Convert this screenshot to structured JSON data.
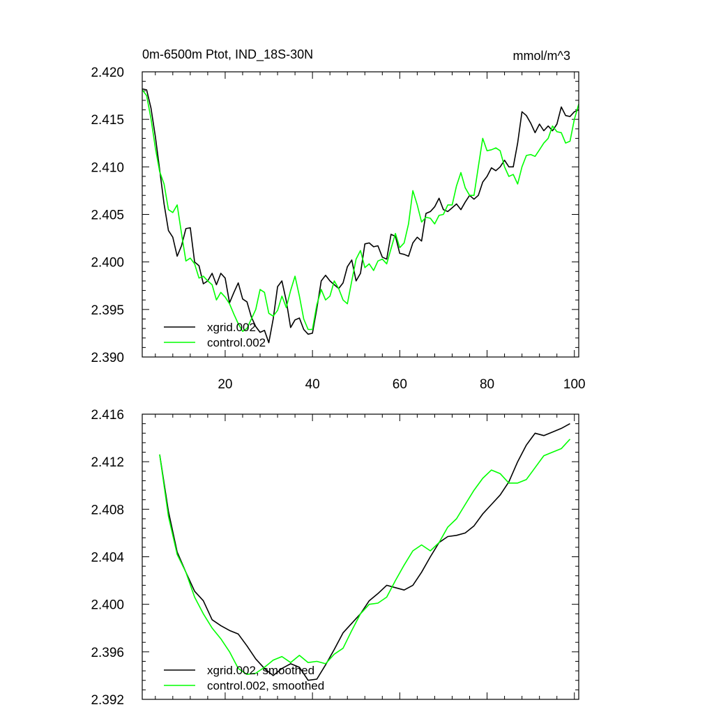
{
  "chart_data": [
    {
      "type": "line",
      "title": "0m-6500m Ptot, IND_18S-30N",
      "units": "mmol/m^3",
      "xlim": [
        1,
        101
      ],
      "ylim": [
        2.39,
        2.42
      ],
      "xticks": [
        20,
        40,
        60,
        80,
        100
      ],
      "yticks": [
        2.39,
        2.395,
        2.4,
        2.405,
        2.41,
        2.415,
        2.42
      ],
      "ytick_labels": [
        "2.390",
        "2.395",
        "2.400",
        "2.405",
        "2.410",
        "2.415",
        "2.420"
      ],
      "legend_position": "bottom-left",
      "x": [
        1,
        2,
        3,
        4,
        5,
        6,
        7,
        8,
        9,
        10,
        11,
        12,
        13,
        14,
        15,
        16,
        17,
        18,
        19,
        20,
        21,
        22,
        23,
        24,
        25,
        26,
        27,
        28,
        29,
        30,
        31,
        32,
        33,
        34,
        35,
        36,
        37,
        38,
        39,
        40,
        41,
        42,
        43,
        44,
        45,
        46,
        47,
        48,
        49,
        50,
        51,
        52,
        53,
        54,
        55,
        56,
        57,
        58,
        59,
        60,
        61,
        62,
        63,
        64,
        65,
        66,
        67,
        68,
        69,
        70,
        71,
        72,
        73,
        74,
        75,
        76,
        77,
        78,
        79,
        80,
        81,
        82,
        83,
        84,
        85,
        86,
        87,
        88,
        89,
        90,
        91,
        92,
        93,
        94,
        95,
        96,
        97,
        98,
        99,
        100,
        101
      ],
      "series": [
        {
          "name": "xgrid.002",
          "color": "#000000",
          "values": [
            2.4182,
            2.4181,
            2.4162,
            2.4132,
            2.4097,
            2.4061,
            2.4033,
            2.4026,
            2.4006,
            2.4017,
            2.4035,
            2.4036,
            2.4,
            2.3996,
            2.3977,
            2.398,
            2.3988,
            2.3976,
            2.3988,
            2.3983,
            2.3957,
            2.3968,
            2.3978,
            2.3961,
            2.3958,
            2.3942,
            2.3932,
            2.3926,
            2.3928,
            2.3915,
            2.394,
            2.3974,
            2.398,
            2.3959,
            2.3931,
            2.3939,
            2.3941,
            2.3929,
            2.3924,
            2.3925,
            2.3951,
            2.398,
            2.3986,
            2.398,
            2.3976,
            2.3972,
            2.3978,
            2.3995,
            2.4002,
            2.398,
            2.3988,
            2.4019,
            2.402,
            2.4016,
            2.4017,
            2.4005,
            2.4003,
            2.4029,
            2.4027,
            2.4009,
            2.4008,
            2.4006,
            2.402,
            2.4026,
            2.4022,
            2.4051,
            2.4053,
            2.4058,
            2.4067,
            2.4055,
            2.4053,
            2.4057,
            2.4061,
            2.4055,
            2.4063,
            2.407,
            2.4066,
            2.407,
            2.4084,
            2.409,
            2.4099,
            2.4096,
            2.41,
            2.4107,
            2.41,
            2.41,
            2.4125,
            2.4158,
            2.4154,
            2.4146,
            2.4136,
            2.4145,
            2.4138,
            2.4143,
            2.4138,
            2.4145,
            2.4163,
            2.4154,
            2.4153,
            2.4158,
            2.416
          ]
        },
        {
          "name": "control.002",
          "color": "#00ff00",
          "values": [
            2.4181,
            2.4175,
            2.4151,
            2.412,
            2.4095,
            2.4082,
            2.4055,
            2.4052,
            2.406,
            2.403,
            2.4001,
            2.4004,
            2.3998,
            2.3983,
            2.3985,
            2.398,
            2.3976,
            2.396,
            2.3968,
            2.3963,
            2.3956,
            2.3945,
            2.3935,
            2.3927,
            2.393,
            2.394,
            2.395,
            2.3971,
            2.3968,
            2.3946,
            2.3943,
            2.3949,
            2.3964,
            2.3952,
            2.397,
            2.3985,
            2.3964,
            2.394,
            2.3929,
            2.3929,
            2.3955,
            2.3971,
            2.396,
            2.3964,
            2.398,
            2.3972,
            2.396,
            2.3956,
            2.398,
            2.4003,
            2.4012,
            2.3994,
            2.3998,
            2.3991,
            2.4001,
            2.4003,
            2.3998,
            2.4014,
            2.403,
            2.4015,
            2.402,
            2.404,
            2.4075,
            2.406,
            2.4042,
            2.4047,
            2.4046,
            2.404,
            2.4049,
            2.405,
            2.406,
            2.406,
            2.408,
            2.4094,
            2.4078,
            2.407,
            2.407,
            2.41,
            2.413,
            2.4117,
            2.4118,
            2.412,
            2.4117,
            2.41,
            2.409,
            2.4092,
            2.4082,
            2.41,
            2.4112,
            2.4113,
            2.4111,
            2.4118,
            2.4125,
            2.413,
            2.4143,
            2.4137,
            2.4136,
            2.4125,
            2.4127,
            2.415,
            2.4166
          ]
        }
      ]
    },
    {
      "type": "line",
      "xlim": [
        1,
        101
      ],
      "ylim": [
        2.392,
        2.416
      ],
      "xticks": [
        20,
        40,
        60,
        80,
        100
      ],
      "yticks": [
        2.392,
        2.396,
        2.4,
        2.404,
        2.408,
        2.412,
        2.416
      ],
      "ytick_labels": [
        "2.392",
        "2.396",
        "2.400",
        "2.404",
        "2.408",
        "2.412",
        "2.416"
      ],
      "legend_position": "bottom-left",
      "x": [
        5,
        7,
        9,
        11,
        13,
        15,
        17,
        19,
        21,
        23,
        25,
        27,
        29,
        31,
        33,
        35,
        37,
        39,
        41,
        43,
        45,
        47,
        49,
        51,
        53,
        55,
        57,
        59,
        61,
        63,
        65,
        67,
        69,
        71,
        73,
        75,
        77,
        79,
        81,
        83,
        85,
        87,
        89,
        91,
        93,
        95,
        97,
        99
      ],
      "series": [
        {
          "name": "xgrid.002, smoothed",
          "color": "#000000",
          "values": [
            2.4126,
            2.4078,
            2.4044,
            2.4027,
            2.4011,
            2.4003,
            2.3987,
            2.3982,
            2.3978,
            2.3975,
            2.3965,
            2.3954,
            2.3946,
            2.394,
            2.3946,
            2.395,
            2.3947,
            2.3936,
            2.3937,
            2.3949,
            2.3962,
            2.3976,
            2.3984,
            2.3992,
            2.4003,
            2.4009,
            2.4016,
            2.4014,
            2.4012,
            2.4016,
            2.4027,
            2.404,
            2.4052,
            2.4057,
            2.4058,
            2.406,
            2.4066,
            2.4076,
            2.4084,
            2.4092,
            2.4103,
            2.412,
            2.4134,
            2.4144,
            2.4142,
            2.4145,
            2.4148,
            2.4152
          ]
        },
        {
          "name": "control.002, smoothed",
          "color": "#00ff00",
          "values": [
            2.4126,
            2.4074,
            2.4042,
            2.4027,
            2.4006,
            2.3992,
            2.398,
            2.3971,
            2.396,
            2.3946,
            2.3941,
            2.3942,
            2.3947,
            2.3953,
            2.3956,
            2.3951,
            2.3957,
            2.3951,
            2.3952,
            2.395,
            2.3958,
            2.3963,
            2.3978,
            2.3992,
            2.4,
            2.4001,
            2.4006,
            2.402,
            2.4033,
            2.4045,
            2.405,
            2.4045,
            2.4052,
            2.4065,
            2.4072,
            2.4084,
            2.4096,
            2.4106,
            2.4113,
            2.411,
            2.4102,
            2.4102,
            2.4105,
            2.4115,
            2.4125,
            2.4128,
            2.4131,
            2.4139
          ]
        }
      ]
    }
  ]
}
